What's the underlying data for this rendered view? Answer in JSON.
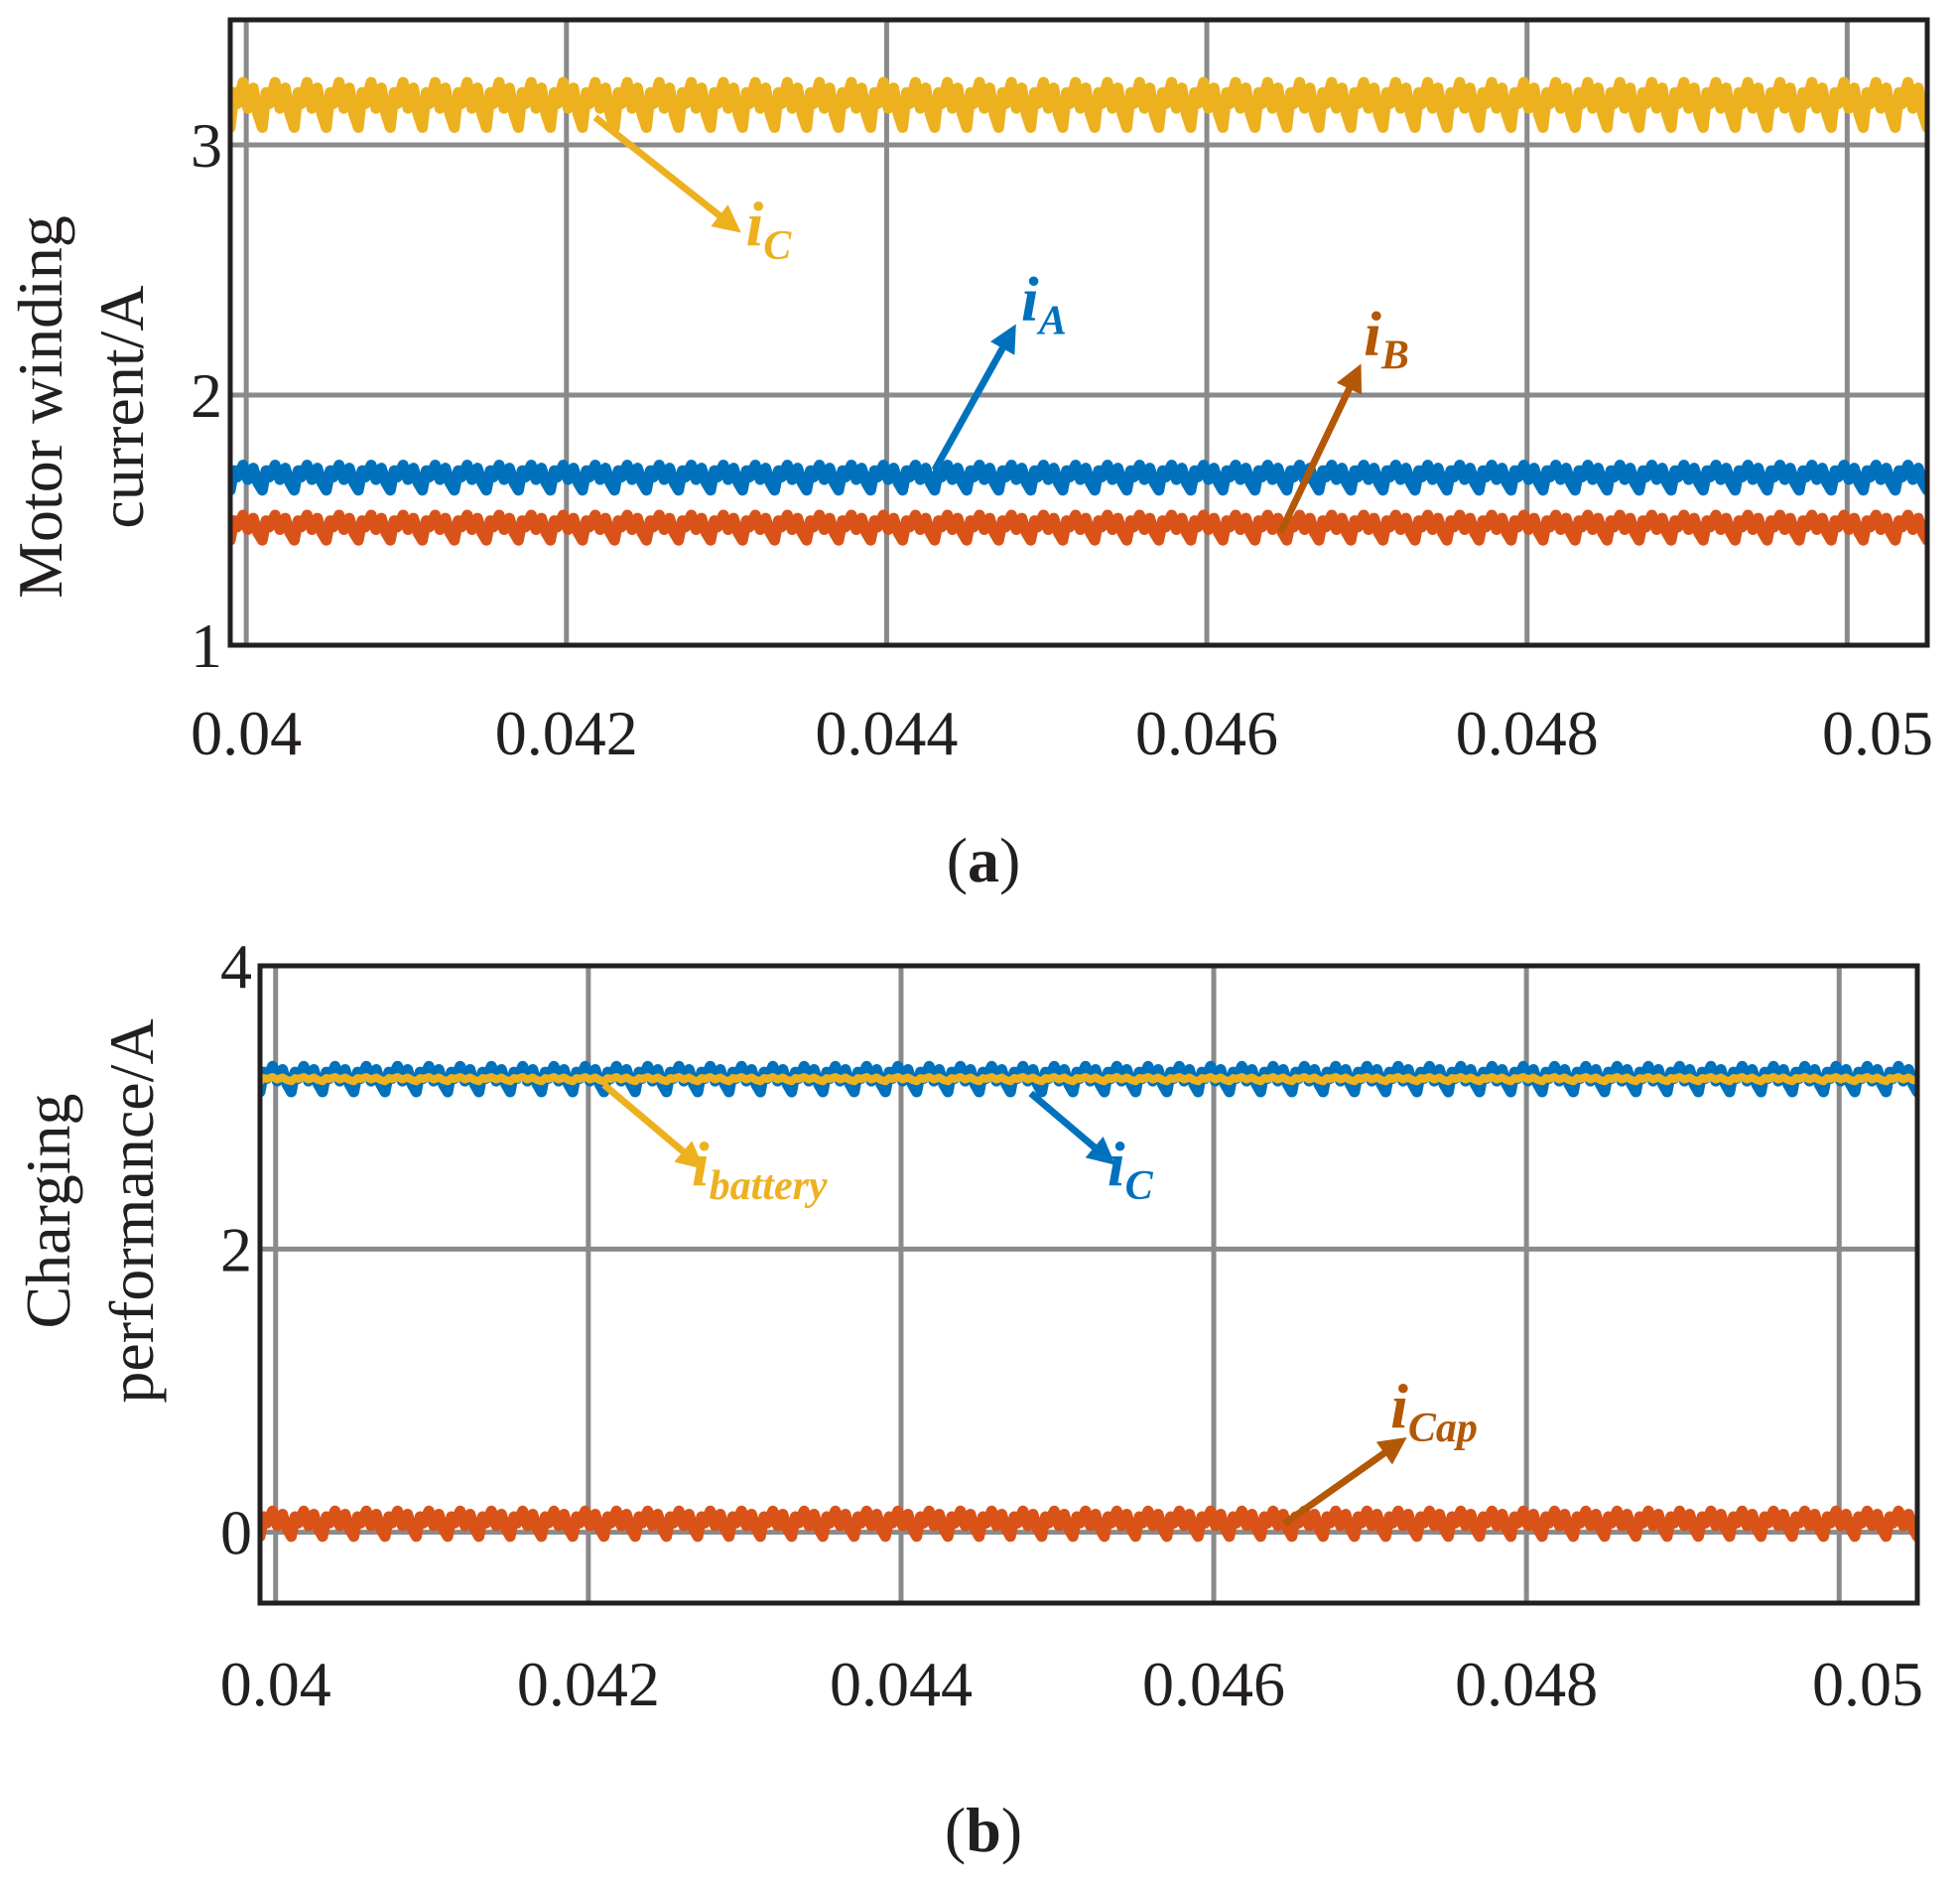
{
  "colors": {
    "blue": "#0072BD",
    "orange": "#D95319",
    "yellow": "#EDB120",
    "brown": "#B35806"
  },
  "chart_data": [
    {
      "type": "line",
      "caption": {
        "open": "(",
        "letter": "a",
        "close": ")"
      },
      "ylabel": [
        "Motor winding",
        "current/A"
      ],
      "xlabel": "",
      "xlim": [
        0.0399,
        0.0505
      ],
      "ylim": [
        1,
        3.5
      ],
      "xticks": [
        "0.04",
        "0.042",
        "0.044",
        "0.046",
        "0.048",
        "0.05"
      ],
      "xtick_values": [
        0.04,
        0.042,
        0.044,
        0.046,
        0.048,
        0.05
      ],
      "yticks": [
        "1",
        "2",
        "3"
      ],
      "ytick_values": [
        1,
        2,
        3
      ],
      "grid": true,
      "ripple_period": 0.0002,
      "series": [
        {
          "name": "iC",
          "color": "#EDB120",
          "mean": 3.16,
          "ripple": 0.09
        },
        {
          "name": "iA",
          "color": "#0072BD",
          "mean": 1.67,
          "ripple": 0.05
        },
        {
          "name": "iB",
          "color": "#D95319",
          "mean": 1.47,
          "ripple": 0.05
        }
      ],
      "annotations": [
        {
          "main": "i",
          "sub": "C",
          "color": "#EDB120",
          "text_at": [
            0.04312,
            2.6
          ],
          "arrow_from": [
            0.04218,
            3.11
          ],
          "arrow_to": [
            0.04303,
            2.68
          ]
        },
        {
          "main": "i",
          "sub": "A",
          "color": "#0072BD",
          "text_at": [
            0.04484,
            2.3
          ],
          "arrow_from": [
            0.0443,
            1.7
          ],
          "arrow_to": [
            0.04477,
            2.24
          ]
        },
        {
          "main": "i",
          "sub": "B",
          "color": "#B35806",
          "text_at": [
            0.04698,
            2.16
          ],
          "arrow_from": [
            0.04646,
            1.45
          ],
          "arrow_to": [
            0.04693,
            2.08
          ]
        }
      ]
    },
    {
      "type": "line",
      "caption": {
        "open": "(",
        "letter": "b",
        "close": ")"
      },
      "ylabel": [
        "Charging",
        "performance/A"
      ],
      "xlabel": "",
      "xlim": [
        0.0399,
        0.0505
      ],
      "ylim": [
        -0.5,
        4
      ],
      "xticks": [
        "0.04",
        "0.042",
        "0.044",
        "0.046",
        "0.048",
        "0.05"
      ],
      "xtick_values": [
        0.04,
        0.042,
        0.044,
        0.046,
        0.048,
        0.05
      ],
      "yticks": [
        "0",
        "2",
        "4"
      ],
      "ytick_values": [
        0,
        2,
        4
      ],
      "grid": true,
      "ripple_period": 0.0002,
      "series": [
        {
          "name": "iC",
          "color": "#0072BD",
          "mean": 3.2,
          "ripple": 0.09
        },
        {
          "name": "ibattery",
          "color": "#EDB120",
          "mean": 3.2,
          "ripple": 0.015
        },
        {
          "name": "iCap",
          "color": "#D95319",
          "mean": 0.06,
          "ripple": 0.09
        }
      ],
      "annotations": [
        {
          "main": "i",
          "sub": "battery",
          "color": "#EDB120",
          "text_at": [
            0.04266,
            2.45
          ],
          "arrow_from": [
            0.0421,
            3.16
          ],
          "arrow_to": [
            0.04268,
            2.62
          ]
        },
        {
          "main": "i",
          "sub": "C",
          "color": "#0072BD",
          "text_at": [
            0.04532,
            2.45
          ],
          "arrow_from": [
            0.04483,
            3.1
          ],
          "arrow_to": [
            0.04531,
            2.65
          ]
        },
        {
          "main": "i",
          "sub": "Cap",
          "color": "#B35806",
          "text_at": [
            0.04713,
            0.74
          ],
          "arrow_from": [
            0.04645,
            0.06
          ],
          "arrow_to": [
            0.04717,
            0.62
          ]
        }
      ]
    }
  ]
}
